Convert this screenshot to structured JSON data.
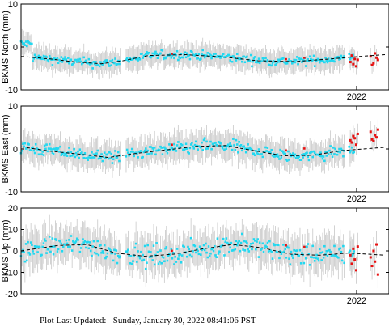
{
  "footer": {
    "label": "Plot Last Updated:",
    "timestamp": "Sunday, January 30, 2022 08:41:06 PST"
  },
  "style": {
    "point_color": "#22d8f0",
    "recent_point_color": "#e81010",
    "errorbar_color": "#c8c8c8",
    "model_line_color": "#000000",
    "model_line_style": "dashed"
  },
  "chart_data": [
    {
      "type": "scatter",
      "ylabel": "BKMS North (mm)",
      "ylim": [
        -10,
        10
      ],
      "yticks": [
        -10,
        0,
        10
      ],
      "xtick_labels": [
        "2022"
      ],
      "grid": false,
      "model_trend": [
        [
          0,
          -2.2
        ],
        [
          0.08,
          -2.8
        ],
        [
          0.15,
          -3.5
        ],
        [
          0.22,
          -3.9
        ],
        [
          0.28,
          -3.2
        ],
        [
          0.35,
          -2.0
        ],
        [
          0.45,
          -1.8
        ],
        [
          0.55,
          -2.3
        ],
        [
          0.65,
          -3.2
        ],
        [
          0.75,
          -3.4
        ],
        [
          0.85,
          -2.8
        ],
        [
          0.93,
          -2.2
        ],
        [
          1.0,
          -1.8
        ]
      ],
      "series_note": "daily position solutions with error bars; recent solutions in red",
      "noise": 1.0,
      "errorbar": 2.5,
      "red_points": [
        -3.5,
        -2.0,
        -4.0,
        -2.8,
        -4.5,
        -3.0,
        -2.2,
        -4.2,
        -3.8,
        -1.5,
        -2.5,
        -3.0
      ]
    },
    {
      "type": "scatter",
      "ylabel": "BKMS East (mm)",
      "ylim": [
        -10,
        10
      ],
      "yticks": [
        -10,
        0,
        10
      ],
      "xtick_labels": [
        "2022"
      ],
      "grid": false,
      "model_trend": [
        [
          0,
          0.5
        ],
        [
          0.08,
          -0.5
        ],
        [
          0.16,
          -1.2
        ],
        [
          0.24,
          -2.0
        ],
        [
          0.32,
          -1.0
        ],
        [
          0.4,
          -0.2
        ],
        [
          0.48,
          0.6
        ],
        [
          0.56,
          0.8
        ],
        [
          0.64,
          -0.4
        ],
        [
          0.72,
          -1.6
        ],
        [
          0.8,
          -1.5
        ],
        [
          0.88,
          -0.4
        ],
        [
          1.0,
          0.4
        ]
      ],
      "series_note": "daily position solutions with error bars; recent solutions in red",
      "noise": 1.4,
      "errorbar": 3.0,
      "red_points": [
        2.0,
        1.5,
        3.0,
        2.5,
        1.0,
        3.5,
        4.0,
        2.2,
        1.8,
        3.2,
        2.7,
        4.5
      ]
    },
    {
      "type": "scatter",
      "ylabel": "BKMS Up (mm)",
      "ylim": [
        -20,
        20
      ],
      "yticks": [
        -20,
        -10,
        0,
        10,
        20
      ],
      "xtick_labels": [
        "2022"
      ],
      "grid": false,
      "model_trend": [
        [
          0,
          0.0
        ],
        [
          0.1,
          2.5
        ],
        [
          0.18,
          3.0
        ],
        [
          0.26,
          -1.0
        ],
        [
          0.34,
          -2.5
        ],
        [
          0.42,
          -1.5
        ],
        [
          0.5,
          1.0
        ],
        [
          0.58,
          3.0
        ],
        [
          0.66,
          1.5
        ],
        [
          0.74,
          -1.5
        ],
        [
          0.82,
          -2.0
        ],
        [
          0.9,
          -1.0
        ],
        [
          1.0,
          -2.0
        ]
      ],
      "series_note": "daily position solutions with error bars; recent solutions in red",
      "noise": 4.5,
      "errorbar": 8.0,
      "red_points": [
        -2.0,
        -6.0,
        1.0,
        -4.0,
        -9.0,
        2.0,
        -3.0,
        -7.0,
        0.0,
        -5.0,
        3.0,
        -11.0
      ]
    }
  ]
}
